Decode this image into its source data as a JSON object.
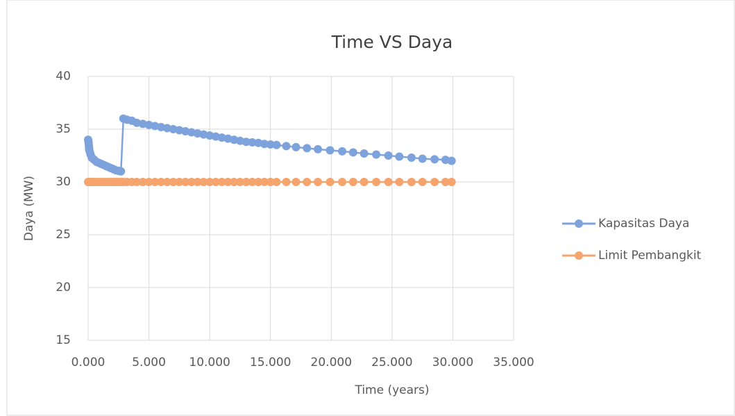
{
  "chart_data": {
    "type": "line",
    "title": "Time VS Daya",
    "x_label": "Time (years)",
    "y_label": "Daya (MW)",
    "x": [
      0,
      0.02,
      0.04,
      0.06,
      0.08,
      0.1,
      0.15,
      0.2,
      0.3,
      0.4,
      0.5,
      0.7,
      0.9,
      1.1,
      1.3,
      1.5,
      1.7,
      1.9,
      2.1,
      2.3,
      2.5,
      2.7,
      2.9,
      3.2,
      3.6,
      4.0,
      4.5,
      5.0,
      5.5,
      6.0,
      6.5,
      7.0,
      7.5,
      8.0,
      8.5,
      9.0,
      9.5,
      10.0,
      10.5,
      11.0,
      11.5,
      12.0,
      12.5,
      13.0,
      13.5,
      14.0,
      14.5,
      15.0,
      15.5,
      16.3,
      17.1,
      18.0,
      18.9,
      19.9,
      20.9,
      21.8,
      22.7,
      23.7,
      24.7,
      25.6,
      26.6,
      27.5,
      28.5,
      29.4,
      29.9
    ],
    "series": [
      {
        "name": "Kapasitas Daya",
        "color": "#7ea3dc",
        "values": [
          34,
          33.9,
          33.7,
          33.4,
          33.2,
          33,
          32.8,
          32.6,
          32.3,
          32.2,
          32.1,
          31.9,
          31.8,
          31.7,
          31.6,
          31.5,
          31.4,
          31.3,
          31.2,
          31.1,
          31.05,
          31,
          36,
          35.9,
          35.8,
          35.6,
          35.5,
          35.4,
          35.3,
          35.2,
          35.1,
          35.0,
          34.9,
          34.8,
          34.7,
          34.6,
          34.5,
          34.4,
          34.3,
          34.2,
          34.1,
          34.0,
          33.9,
          33.8,
          33.75,
          33.7,
          33.6,
          33.55,
          33.5,
          33.4,
          33.3,
          33.2,
          33.1,
          33.0,
          32.9,
          32.8,
          32.7,
          32.6,
          32.5,
          32.4,
          32.3,
          32.2,
          32.15,
          32.1,
          32.0
        ]
      },
      {
        "name": "Limit Pembangkit",
        "color": "#f4a46c",
        "values": [
          30,
          30,
          30,
          30,
          30,
          30,
          30,
          30,
          30,
          30,
          30,
          30,
          30,
          30,
          30,
          30,
          30,
          30,
          30,
          30,
          30,
          30,
          30,
          30,
          30,
          30,
          30,
          30,
          30,
          30,
          30,
          30,
          30,
          30,
          30,
          30,
          30,
          30,
          30,
          30,
          30,
          30,
          30,
          30,
          30,
          30,
          30,
          30,
          30,
          30,
          30,
          30,
          30,
          30,
          30,
          30,
          30,
          30,
          30,
          30,
          30,
          30,
          30,
          30,
          30
        ]
      }
    ],
    "xlim": [
      0,
      35
    ],
    "ylim": [
      15,
      40
    ],
    "xticks": [
      {
        "value": 0,
        "label": "0.000"
      },
      {
        "value": 5,
        "label": "5.000"
      },
      {
        "value": 10,
        "label": "10.000"
      },
      {
        "value": 15,
        "label": "15.000"
      },
      {
        "value": 20,
        "label": "20.000"
      },
      {
        "value": 25,
        "label": "25.000"
      },
      {
        "value": 30,
        "label": "30.000"
      },
      {
        "value": 35,
        "label": "35.000"
      }
    ],
    "yticks": [
      15,
      20,
      25,
      30,
      35,
      40
    ],
    "grid": true,
    "legend": "right"
  }
}
